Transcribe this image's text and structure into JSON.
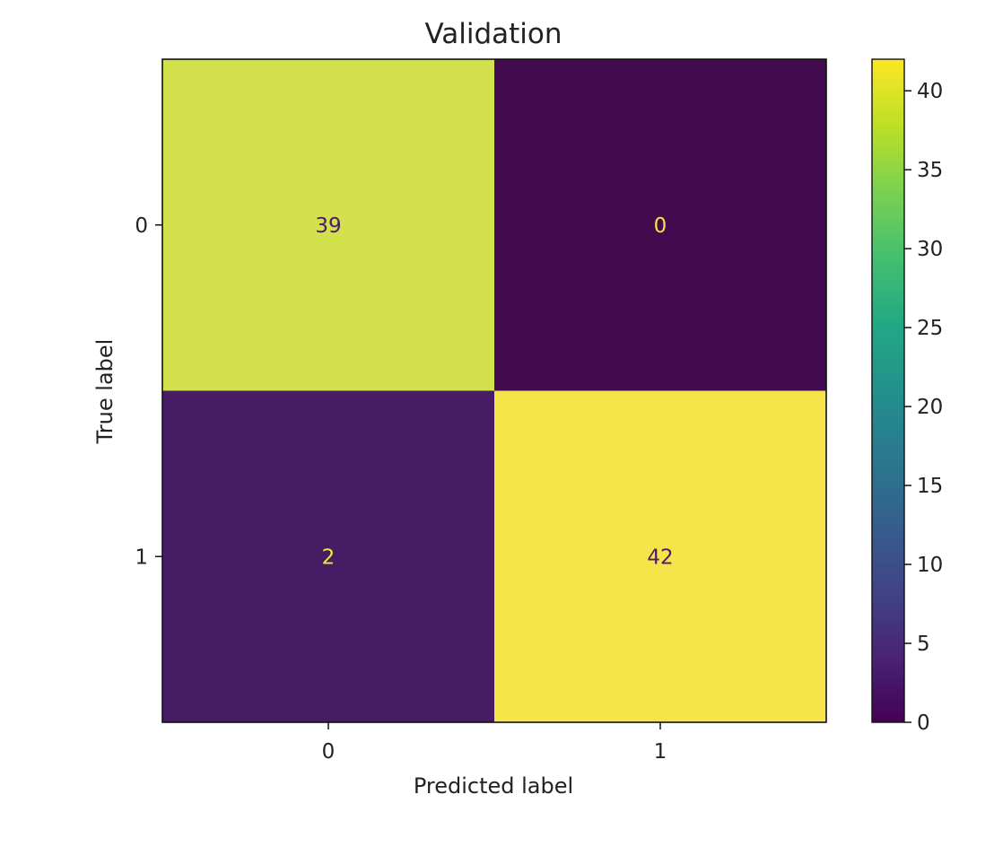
{
  "chart_data": {
    "type": "heatmap",
    "title": "Validation",
    "xlabel": "Predicted label",
    "ylabel": "True label",
    "x_categories": [
      "0",
      "1"
    ],
    "y_categories": [
      "0",
      "1"
    ],
    "values": [
      [
        39,
        0
      ],
      [
        2,
        42
      ]
    ],
    "colormap": "viridis",
    "colorbar": {
      "range": [
        0,
        42
      ],
      "ticks": [
        0,
        5,
        10,
        15,
        20,
        25,
        30,
        35,
        40
      ]
    },
    "colors": {
      "cell_0_0": "#d2e14c",
      "cell_0_1": "#440a4f",
      "cell_1_0": "#461d64",
      "cell_1_1": "#f5e54a",
      "text_on_light": "#4c1d67",
      "text_on_dark": "#f6e43f"
    }
  }
}
